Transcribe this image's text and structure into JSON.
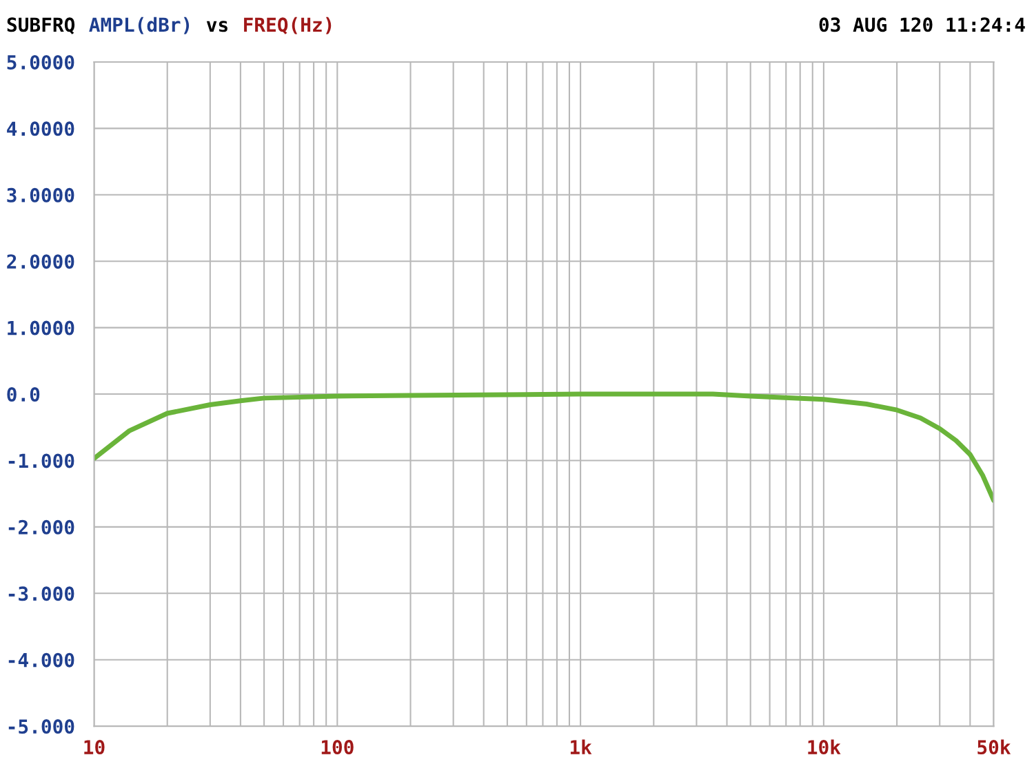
{
  "chart_data": {
    "type": "line",
    "title": "SUBFRQ",
    "ylabel": "AMPL(dBr)",
    "xlabel": "FREQ(Hz)",
    "annotations": [
      "vs",
      "03 AUG 120 11:24:4"
    ],
    "log": "x",
    "grid": true,
    "legend": false,
    "marker": "none",
    "line_style": "solid",
    "series": [
      {
        "color": "#6ab43a",
        "x": [
          10,
          14,
          20,
          30,
          40,
          50,
          100,
          200,
          1000,
          3500,
          5000,
          10000,
          15000,
          20000,
          25000,
          30000,
          35000,
          40000,
          45000,
          50000
        ],
        "values": [
          -0.97,
          -0.55,
          -0.29,
          -0.16,
          -0.1,
          -0.06,
          -0.03,
          -0.02,
          0,
          0,
          -0.03,
          -0.08,
          -0.15,
          -0.24,
          -0.36,
          -0.52,
          -0.7,
          -0.91,
          -1.22,
          -1.6
        ]
      }
    ],
    "xlim": [
      10,
      50000
    ],
    "xticks": [
      10,
      {
        "value": 20,
        "label": null
      },
      {
        "value": 30,
        "label": null
      },
      {
        "value": 40,
        "label": null
      },
      {
        "value": 50,
        "label": null
      },
      {
        "value": 60,
        "label": null
      },
      {
        "value": 70,
        "label": null
      },
      {
        "value": 80,
        "label": null
      },
      {
        "value": 90,
        "label": null
      },
      100,
      {
        "value": 200,
        "label": null
      },
      {
        "value": 300,
        "label": null
      },
      {
        "value": 400,
        "label": null
      },
      {
        "value": 500,
        "label": null
      },
      {
        "value": 600,
        "label": null
      },
      {
        "value": 700,
        "label": null
      },
      {
        "value": 800,
        "label": null
      },
      {
        "value": 900,
        "label": null
      },
      {
        "value": 1000,
        "label": "1k"
      },
      {
        "value": 2000,
        "label": null
      },
      {
        "value": 3000,
        "label": null
      },
      {
        "value": 4000,
        "label": null
      },
      {
        "value": 5000,
        "label": null
      },
      {
        "value": 6000,
        "label": null
      },
      {
        "value": 7000,
        "label": null
      },
      {
        "value": 8000,
        "label": null
      },
      {
        "value": 9000,
        "label": null
      },
      {
        "value": 10000,
        "label": "10k"
      },
      {
        "value": 20000,
        "label": null
      },
      {
        "value": 30000,
        "label": null
      },
      {
        "value": 40000,
        "label": null
      },
      {
        "value": 50000,
        "label": "50k"
      }
    ],
    "ylim": [
      -5,
      5
    ],
    "yticks": [
      {
        "value": 5,
        "label": "5.0000"
      },
      {
        "value": 4,
        "label": "4.0000"
      },
      {
        "value": 3,
        "label": "3.0000"
      },
      {
        "value": 2,
        "label": "2.0000"
      },
      {
        "value": 1,
        "label": "1.0000"
      },
      {
        "value": 0,
        "label": "0.0"
      },
      {
        "value": -1,
        "label": "-1.000"
      },
      {
        "value": -2,
        "label": "-2.000"
      },
      {
        "value": -3,
        "label": "-3.000"
      },
      {
        "value": -4,
        "label": "-4.000"
      },
      {
        "value": -5,
        "label": "-5.000"
      }
    ]
  }
}
